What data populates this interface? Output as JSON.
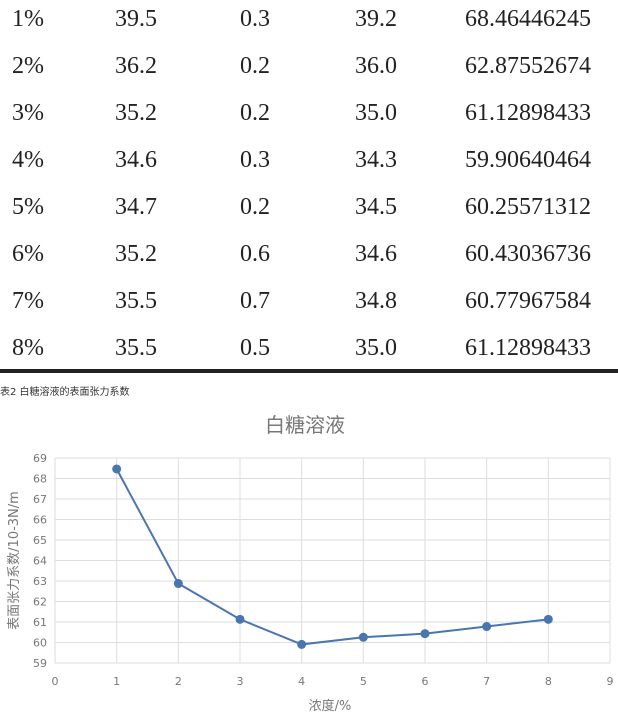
{
  "table": {
    "rows": [
      [
        "1%",
        "39.5",
        "0.3",
        "39.2",
        "68.46446245"
      ],
      [
        "2%",
        "36.2",
        "0.2",
        "36.0",
        "62.87552674"
      ],
      [
        "3%",
        "35.2",
        "0.2",
        "35.0",
        "61.12898433"
      ],
      [
        "4%",
        "34.6",
        "0.3",
        "34.3",
        "59.90640464"
      ],
      [
        "5%",
        "34.7",
        "0.2",
        "34.5",
        "60.25571312"
      ],
      [
        "6%",
        "35.2",
        "0.6",
        "34.6",
        "60.43036736"
      ],
      [
        "7%",
        "35.5",
        "0.7",
        "34.8",
        "60.77967584"
      ],
      [
        "8%",
        "35.5",
        "0.5",
        "35.0",
        "61.12898433"
      ]
    ]
  },
  "caption": "表2 白糖溶液的表面张力系数",
  "chart_data": {
    "type": "line",
    "title": "白糖溶液",
    "xlabel": "浓度/%",
    "ylabel": "表面张力系数/10-3N/m",
    "xlim": [
      0,
      9
    ],
    "ylim": [
      59,
      69
    ],
    "x": [
      1,
      2,
      3,
      4,
      5,
      6,
      7,
      8
    ],
    "y": [
      68.46446245,
      62.87552674,
      61.12898433,
      59.90640464,
      60.25571312,
      60.43036736,
      60.77967584,
      61.12898433
    ],
    "grid": true,
    "color": "#4a76b0"
  }
}
